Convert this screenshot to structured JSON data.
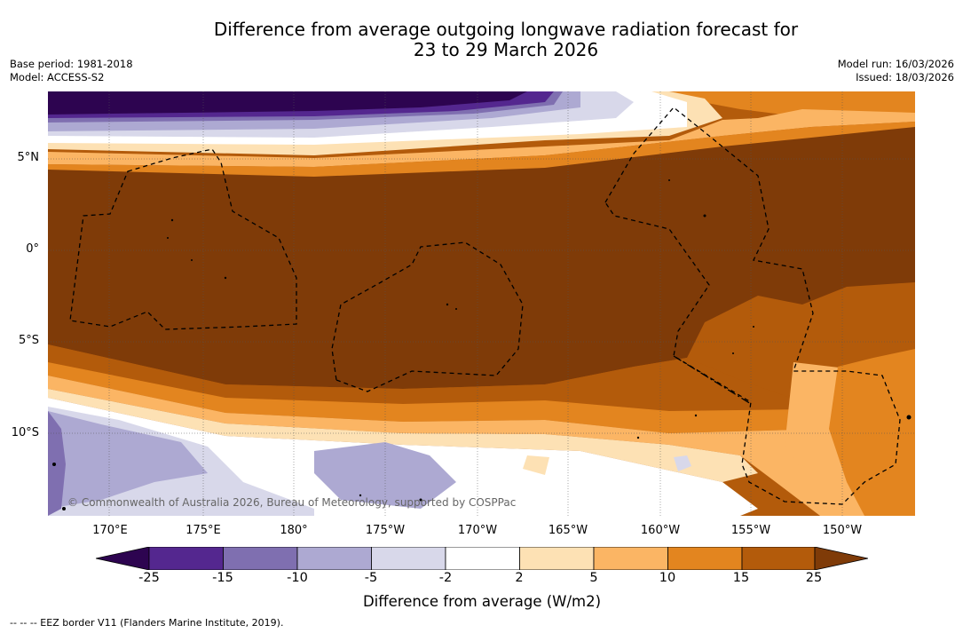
{
  "title_line1": "Difference from average outgoing longwave radiation forecast for",
  "title_line2": "23 to 29 March 2026",
  "base_period": "Base period: 1981-2018",
  "model": "Model: ACCESS-S2",
  "model_run": "Model run: 16/03/2026",
  "issued": "Issued: 18/03/2026",
  "lat_labels": [
    "5°N",
    "0°",
    "5°S",
    "10°S"
  ],
  "lon_labels": [
    "170°E",
    "175°E",
    "180°",
    "175°W",
    "170°W",
    "165°W",
    "160°W",
    "155°W",
    "150°W"
  ],
  "copyright": "© Commonwealth of Australia 2026, Bureau of Meteorology, supported by COSPPac",
  "colorbar": {
    "ticks": [
      "-25",
      "-15",
      "-10",
      "-5",
      "-2",
      "2",
      "5",
      "10",
      "15",
      "25"
    ],
    "colors": [
      "#2d0450",
      "#54278f",
      "#7f6fb0",
      "#ada9d2",
      "#d8d8ea",
      "#ffffff",
      "#fde1b4",
      "#fbb564",
      "#e3851f",
      "#b35b0b",
      "#7f3b08"
    ],
    "title": "Difference from average (W/m2)"
  },
  "legend_note": "--  --  -- EEZ border V11 (Flanders Marine Institute, 2019)."
}
